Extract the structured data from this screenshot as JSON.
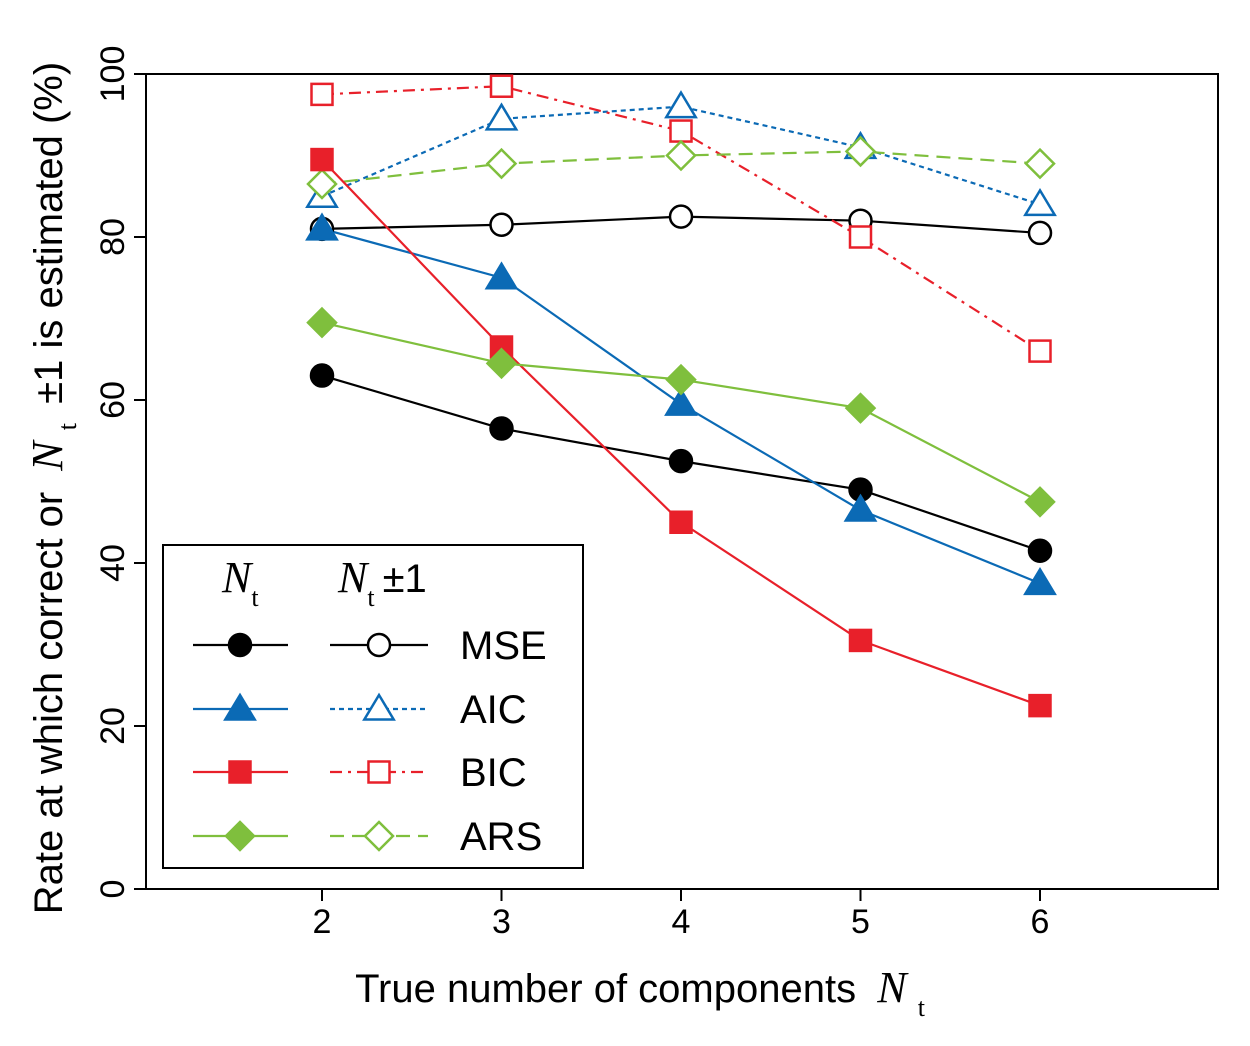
{
  "chart_data": {
    "type": "line",
    "x": [
      2,
      3,
      4,
      5,
      6
    ],
    "xlim": [
      1,
      6.0
    ],
    "ylim": [
      0,
      100
    ],
    "xticks": [
      "2",
      "3",
      "4",
      "5",
      "6"
    ],
    "yticks": [
      "0",
      "20",
      "40",
      "60",
      "80",
      "100"
    ],
    "xlabel": {
      "text": "True number of components",
      "sym": "N",
      "sub": "t"
    },
    "ylabel": {
      "prefix": "Rate at which correct or",
      "sym": "N",
      "sub": "t",
      "suffix": "±1 is estimated (%)"
    },
    "legend": {
      "placement": "bottom-left",
      "col1": {
        "sym": "N",
        "sub": "t"
      },
      "col2": {
        "sym": "N",
        "sub": "t",
        "suffix": "±1"
      },
      "rows": [
        "MSE",
        "AIC",
        "BIC",
        "ARS"
      ]
    },
    "series": [
      {
        "method": "MSE",
        "kind": "Nt",
        "values": [
          63,
          56.5,
          52.5,
          49,
          41.5
        ],
        "color": "#000000",
        "marker": "circle",
        "filled": true,
        "dash": "solid"
      },
      {
        "method": "AIC",
        "kind": "Nt",
        "values": [
          81,
          75,
          59.5,
          46.5,
          37.5
        ],
        "color": "#0b6ab5",
        "marker": "triangle",
        "filled": true,
        "dash": "solid"
      },
      {
        "method": "BIC",
        "kind": "Nt",
        "values": [
          89.5,
          66.5,
          45,
          30.5,
          22.5
        ],
        "color": "#e8202a",
        "marker": "square",
        "filled": true,
        "dash": "solid"
      },
      {
        "method": "ARS",
        "kind": "Nt",
        "values": [
          69.5,
          64.5,
          62.5,
          59,
          47.5
        ],
        "color": "#7fbf3d",
        "marker": "diamond",
        "filled": true,
        "dash": "solid"
      },
      {
        "method": "MSE",
        "kind": "Nt±1",
        "values": [
          81,
          81.5,
          82.5,
          82,
          80.5
        ],
        "color": "#000000",
        "marker": "circle",
        "filled": false,
        "dash": "solid"
      },
      {
        "method": "AIC",
        "kind": "Nt±1",
        "values": [
          85,
          94.5,
          96,
          91,
          84
        ],
        "color": "#0b6ab5",
        "marker": "triangle",
        "filled": false,
        "dash": "dotted"
      },
      {
        "method": "BIC",
        "kind": "Nt±1",
        "values": [
          97.5,
          98.5,
          93,
          80,
          66
        ],
        "color": "#e8202a",
        "marker": "square",
        "filled": false,
        "dash": "dashdot"
      },
      {
        "method": "ARS",
        "kind": "Nt±1",
        "values": [
          86.5,
          89,
          90,
          90.5,
          89
        ],
        "color": "#7fbf3d",
        "marker": "diamond",
        "filled": false,
        "dash": "dashed"
      }
    ]
  }
}
